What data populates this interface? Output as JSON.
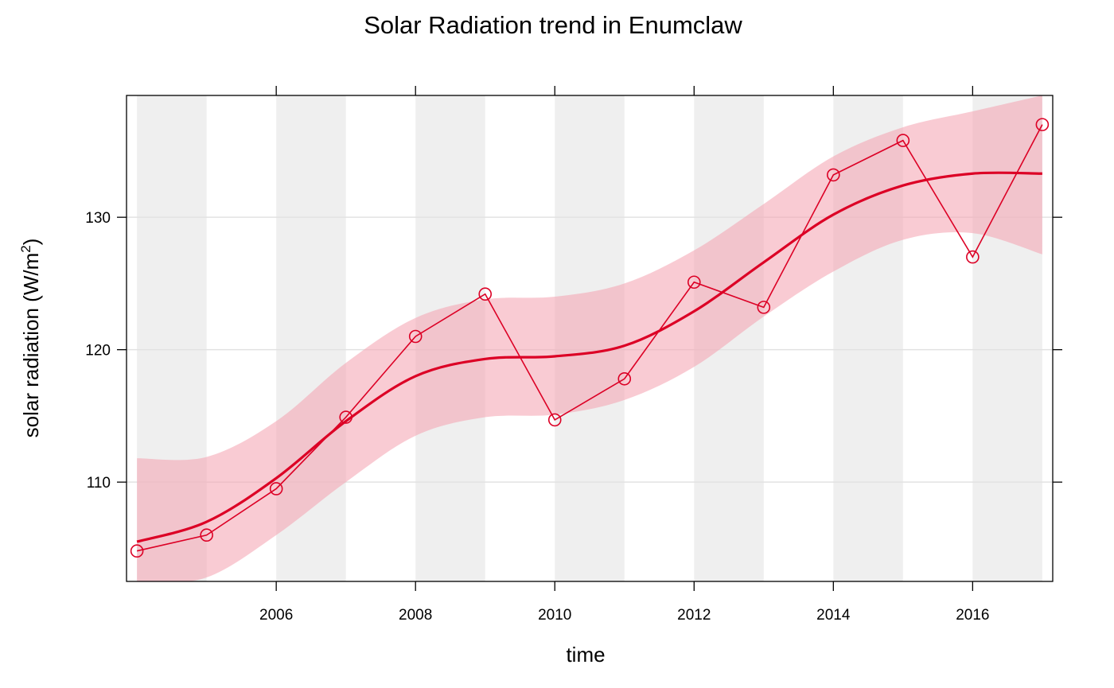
{
  "chart_data": {
    "type": "line",
    "title": "Solar Radiation trend in Enumclaw",
    "xlabel": "time",
    "ylabel_main": "solar radiation (W/m",
    "ylabel_sup": "2",
    "ylabel_close": ")",
    "xlim": [
      2003.85,
      2017.15
    ],
    "ylim": [
      102.5,
      139.2
    ],
    "xticks": [
      2006,
      2008,
      2010,
      2012,
      2014,
      2016
    ],
    "xtick_labels": [
      "2006",
      "2008",
      "2010",
      "2012",
      "2014",
      "2016"
    ],
    "yticks": [
      110,
      120,
      130
    ],
    "ytick_labels": [
      "110",
      "120",
      "130"
    ],
    "grid": "horizontal",
    "background_stripes": [
      [
        2004,
        2005
      ],
      [
        2006,
        2007
      ],
      [
        2008,
        2009
      ],
      [
        2010,
        2011
      ],
      [
        2012,
        2013
      ],
      [
        2014,
        2015
      ],
      [
        2016,
        2017
      ]
    ],
    "colors": {
      "series": "#dc0025",
      "band": "#f4a6b4",
      "stripe": "#efefef",
      "grid": "#e2e2e2"
    },
    "series": [
      {
        "kind": "observed",
        "x": [
          2004,
          2005,
          2006,
          2007,
          2008,
          2009,
          2010,
          2011,
          2012,
          2013,
          2014,
          2015,
          2016,
          2017
        ],
        "values": [
          104.8,
          106.0,
          109.5,
          114.9,
          121.0,
          124.2,
          114.7,
          117.8,
          125.1,
          123.2,
          133.2,
          135.8,
          127.0,
          137.0
        ]
      },
      {
        "kind": "smooth-trend",
        "x": [
          2004,
          2005,
          2006,
          2007,
          2008,
          2009,
          2010,
          2011,
          2012,
          2013,
          2014,
          2015,
          2016,
          2017
        ],
        "values": [
          105.5,
          107.0,
          110.3,
          114.6,
          118.0,
          119.3,
          119.5,
          120.3,
          122.9,
          126.6,
          130.2,
          132.4,
          133.3,
          133.3
        ],
        "lower": [
          102.3,
          102.8,
          106.0,
          110.0,
          113.5,
          114.9,
          115.1,
          116.2,
          118.7,
          122.5,
          125.9,
          128.3,
          128.8,
          127.2
        ],
        "upper": [
          111.8,
          111.9,
          114.6,
          119.0,
          122.4,
          123.8,
          124.0,
          125.0,
          127.5,
          131.0,
          134.6,
          136.8,
          138.0,
          139.2
        ]
      }
    ]
  }
}
